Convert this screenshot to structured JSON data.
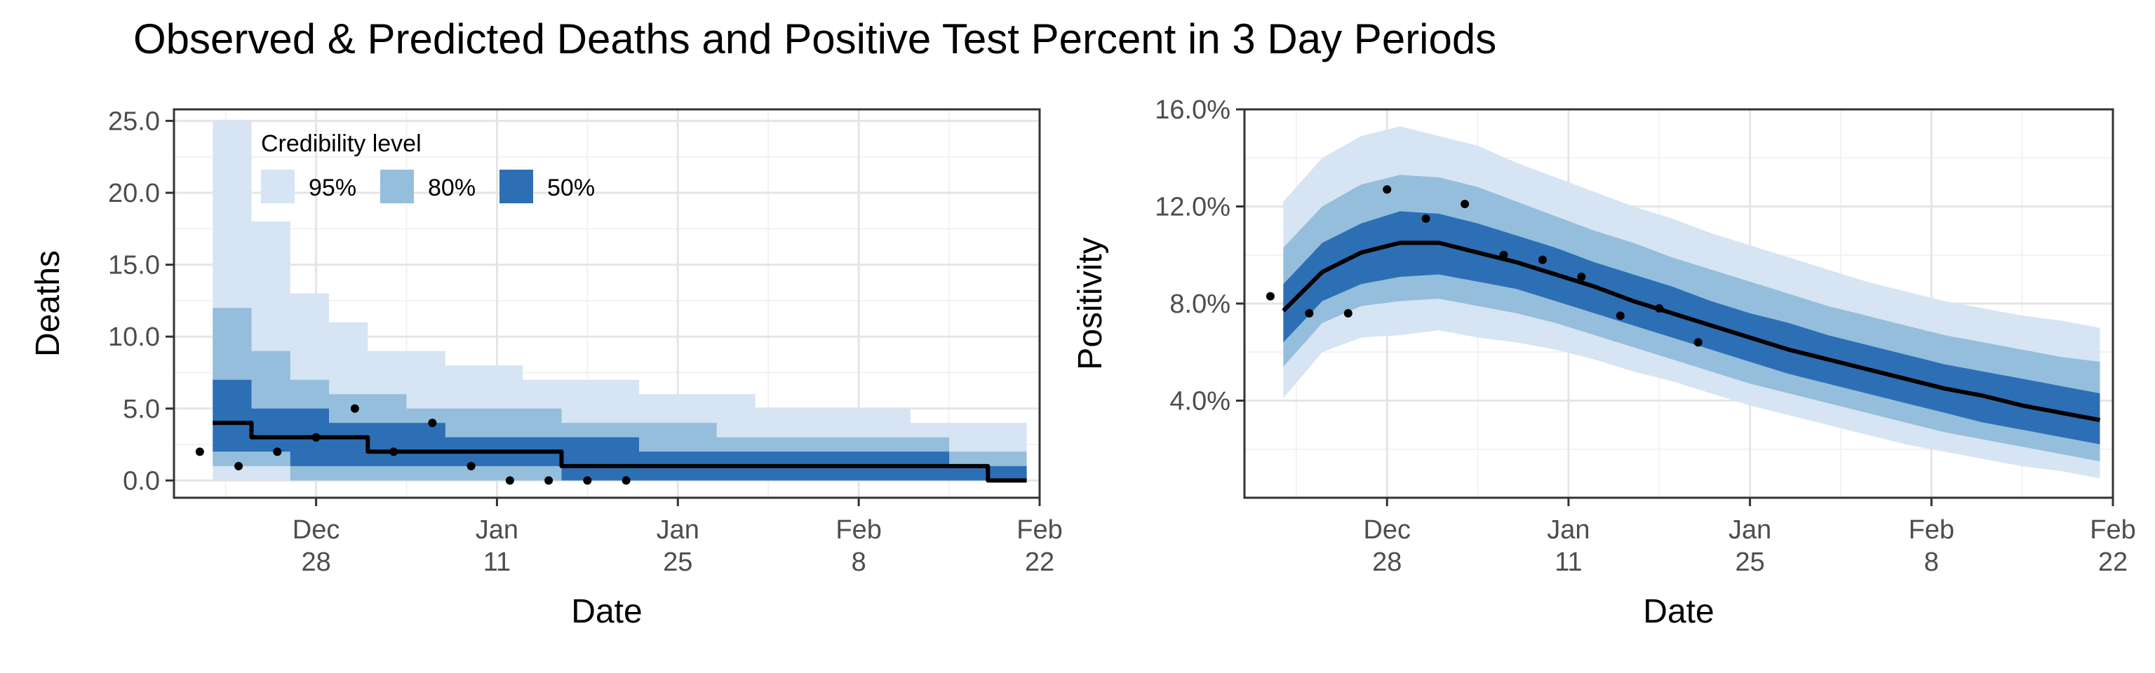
{
  "title": "Observed & Predicted Deaths and Positive Test Percent in 3 Day Periods",
  "legend": {
    "title": "Credibility level",
    "items": [
      {
        "label": "95%",
        "color": "#d6e4f3"
      },
      {
        "label": "80%",
        "color": "#94bedc"
      },
      {
        "label": "50%",
        "color": "#2d6fb4"
      }
    ]
  },
  "colors": {
    "band95": "#d6e4f3",
    "band80": "#94bedc",
    "band50": "#2d6fb4",
    "median": "#000000",
    "points": "#000000",
    "grid_major": "#e5e5e5",
    "grid_minor": "#f2f2f2",
    "axis": "#333333"
  },
  "chart_data": [
    {
      "type": "area",
      "xlabel": "Date",
      "ylabel": "Deaths",
      "xlim": [
        "2020-12-17",
        "2021-02-22"
      ],
      "ylim": [
        -1.2,
        25.8
      ],
      "x_ticks": [
        {
          "date": "2020-12-28",
          "label": "Dec\n28"
        },
        {
          "date": "2021-01-11",
          "label": "Jan\n11"
        },
        {
          "date": "2021-01-25",
          "label": "Jan\n25"
        },
        {
          "date": "2021-02-08",
          "label": "Feb\n8"
        },
        {
          "date": "2021-02-22",
          "label": "Feb\n22"
        }
      ],
      "y_ticks": [
        0,
        5,
        10,
        15,
        20,
        25
      ],
      "y_tick_labels": [
        "0.0",
        "5.0",
        "10.0",
        "15.0",
        "20.0",
        "25.0"
      ],
      "legend": "top-left",
      "x": [
        "2020-12-20",
        "2020-12-23",
        "2020-12-26",
        "2020-12-29",
        "2021-01-01",
        "2021-01-04",
        "2021-01-07",
        "2021-01-10",
        "2021-01-13",
        "2021-01-16",
        "2021-01-19",
        "2021-01-22",
        "2021-01-25",
        "2021-01-28",
        "2021-01-31",
        "2021-02-03",
        "2021-02-06",
        "2021-02-09",
        "2021-02-12",
        "2021-02-15",
        "2021-02-18",
        "2021-02-21"
      ],
      "bands": {
        "95": {
          "lower": [
            0,
            0,
            0,
            0,
            0,
            0,
            0,
            0,
            0,
            0,
            0,
            0,
            0,
            0,
            0,
            0,
            0,
            0,
            0,
            0,
            0,
            0
          ],
          "upper": [
            25,
            18,
            13,
            11,
            9,
            9,
            8,
            8,
            7,
            7,
            7,
            6,
            6,
            6,
            5,
            5,
            5,
            5,
            4,
            4,
            4,
            4
          ]
        },
        "80": {
          "lower": [
            1,
            1,
            0,
            0,
            0,
            0,
            0,
            0,
            0,
            0,
            0,
            0,
            0,
            0,
            0,
            0,
            0,
            0,
            0,
            0,
            0,
            0
          ],
          "upper": [
            12,
            9,
            7,
            6,
            6,
            5,
            5,
            5,
            5,
            4,
            4,
            4,
            4,
            3,
            3,
            3,
            3,
            3,
            3,
            2,
            2,
            2
          ]
        },
        "50": {
          "lower": [
            2,
            2,
            1,
            1,
            1,
            1,
            1,
            1,
            1,
            0,
            0,
            0,
            0,
            0,
            0,
            0,
            0,
            0,
            0,
            0,
            0,
            0
          ],
          "upper": [
            7,
            5,
            5,
            4,
            4,
            4,
            3,
            3,
            3,
            3,
            3,
            2,
            2,
            2,
            2,
            2,
            2,
            2,
            2,
            1,
            1,
            1
          ]
        }
      },
      "median": [
        4,
        3,
        3,
        3,
        2,
        2,
        2,
        2,
        2,
        1,
        1,
        1,
        1,
        1,
        1,
        1,
        1,
        1,
        1,
        1,
        0,
        0
      ],
      "observed": [
        {
          "x": "2020-12-19",
          "y": 2
        },
        {
          "x": "2020-12-22",
          "y": 1
        },
        {
          "x": "2020-12-25",
          "y": 2
        },
        {
          "x": "2020-12-28",
          "y": 3
        },
        {
          "x": "2020-12-31",
          "y": 5
        },
        {
          "x": "2021-01-03",
          "y": 2
        },
        {
          "x": "2021-01-06",
          "y": 4
        },
        {
          "x": "2021-01-09",
          "y": 1
        },
        {
          "x": "2021-01-12",
          "y": 0
        },
        {
          "x": "2021-01-15",
          "y": 0
        },
        {
          "x": "2021-01-18",
          "y": 0
        },
        {
          "x": "2021-01-21",
          "y": 0
        }
      ]
    },
    {
      "type": "area",
      "xlabel": "Date",
      "ylabel": "Positivity",
      "xlim": [
        "2020-12-17",
        "2021-02-22"
      ],
      "ylim": [
        0.0,
        16.0
      ],
      "x_ticks": [
        {
          "date": "2020-12-28",
          "label": "Dec\n28"
        },
        {
          "date": "2021-01-11",
          "label": "Jan\n11"
        },
        {
          "date": "2021-01-25",
          "label": "Jan\n25"
        },
        {
          "date": "2021-02-08",
          "label": "Feb\n8"
        },
        {
          "date": "2021-02-22",
          "label": "Feb\n22"
        }
      ],
      "y_ticks": [
        4,
        8,
        12,
        16
      ],
      "y_tick_labels": [
        "4.0%",
        "8.0%",
        "12.0%",
        "16.0%"
      ],
      "x": [
        "2020-12-20",
        "2020-12-23",
        "2020-12-26",
        "2020-12-29",
        "2021-01-01",
        "2021-01-04",
        "2021-01-07",
        "2021-01-10",
        "2021-01-13",
        "2021-01-16",
        "2021-01-19",
        "2021-01-22",
        "2021-01-25",
        "2021-01-28",
        "2021-01-31",
        "2021-02-03",
        "2021-02-06",
        "2021-02-09",
        "2021-02-12",
        "2021-02-15",
        "2021-02-18",
        "2021-02-21"
      ],
      "bands": {
        "95": {
          "lower": [
            4.1,
            6.0,
            6.6,
            6.7,
            6.9,
            6.6,
            6.4,
            6.1,
            5.7,
            5.2,
            4.8,
            4.3,
            3.8,
            3.4,
            3.0,
            2.6,
            2.2,
            1.9,
            1.6,
            1.3,
            1.1,
            0.8
          ],
          "upper": [
            12.2,
            14.0,
            14.9,
            15.3,
            14.9,
            14.5,
            13.8,
            13.2,
            12.6,
            12.0,
            11.5,
            10.9,
            10.4,
            9.9,
            9.4,
            8.9,
            8.5,
            8.1,
            7.8,
            7.5,
            7.3,
            7.0
          ]
        },
        "80": {
          "lower": [
            5.4,
            7.2,
            7.9,
            8.1,
            8.2,
            7.9,
            7.6,
            7.2,
            6.7,
            6.2,
            5.7,
            5.2,
            4.7,
            4.3,
            3.9,
            3.5,
            3.1,
            2.7,
            2.4,
            2.1,
            1.8,
            1.5
          ],
          "upper": [
            10.3,
            12.0,
            12.9,
            13.3,
            13.2,
            12.8,
            12.2,
            11.6,
            11.0,
            10.5,
            9.9,
            9.4,
            8.9,
            8.4,
            7.9,
            7.5,
            7.1,
            6.7,
            6.4,
            6.1,
            5.8,
            5.6
          ]
        },
        "50": {
          "lower": [
            6.4,
            8.1,
            8.8,
            9.1,
            9.2,
            8.9,
            8.6,
            8.1,
            7.6,
            7.1,
            6.6,
            6.1,
            5.6,
            5.1,
            4.7,
            4.3,
            3.9,
            3.5,
            3.1,
            2.8,
            2.5,
            2.2
          ],
          "upper": [
            8.8,
            10.5,
            11.3,
            11.8,
            11.7,
            11.3,
            10.8,
            10.3,
            9.7,
            9.2,
            8.7,
            8.1,
            7.6,
            7.2,
            6.7,
            6.3,
            5.9,
            5.5,
            5.2,
            4.9,
            4.6,
            4.3
          ]
        },
        "note": ""
      },
      "median": [
        7.7,
        9.3,
        10.1,
        10.5,
        10.5,
        10.1,
        9.7,
        9.2,
        8.7,
        8.1,
        7.6,
        7.1,
        6.6,
        6.1,
        5.7,
        5.3,
        4.9,
        4.5,
        4.2,
        3.8,
        3.5,
        3.2
      ],
      "observed": [
        {
          "x": "2020-12-19",
          "y": 8.3
        },
        {
          "x": "2020-12-22",
          "y": 7.6
        },
        {
          "x": "2020-12-25",
          "y": 7.6
        },
        {
          "x": "2020-12-28",
          "y": 12.7
        },
        {
          "x": "2020-12-31",
          "y": 11.5
        },
        {
          "x": "2021-01-03",
          "y": 12.1
        },
        {
          "x": "2021-01-06",
          "y": 10.0
        },
        {
          "x": "2021-01-09",
          "y": 9.8
        },
        {
          "x": "2021-01-12",
          "y": 9.1
        },
        {
          "x": "2021-01-15",
          "y": 7.5
        },
        {
          "x": "2021-01-18",
          "y": 7.8
        },
        {
          "x": "2021-01-21",
          "y": 6.4
        }
      ]
    }
  ]
}
